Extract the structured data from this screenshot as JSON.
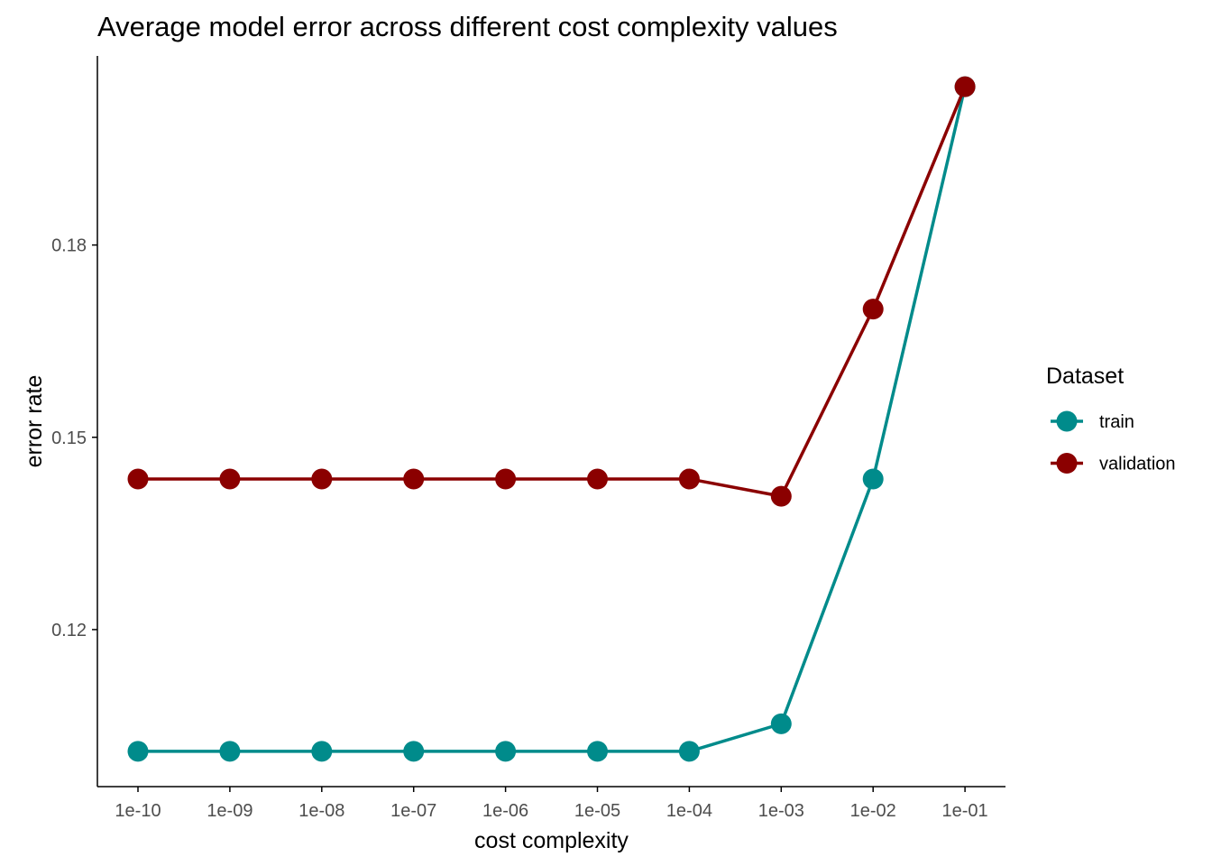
{
  "chart_data": {
    "type": "line",
    "title": "Average model error across different cost complexity values",
    "xlabel": "cost complexity",
    "ylabel": "error rate",
    "categories": [
      "1e-10",
      "1e-09",
      "1e-08",
      "1e-07",
      "1e-06",
      "1e-05",
      "1e-04",
      "1e-03",
      "1e-02",
      "1e-01"
    ],
    "ylim": [
      0.0955,
      0.2095
    ],
    "yticks": [
      0.12,
      0.15,
      0.18
    ],
    "ytick_labels": [
      "0.12",
      "0.15",
      "0.18"
    ],
    "grid": false,
    "legend": {
      "title": "Dataset",
      "position": "right"
    },
    "series": [
      {
        "name": "train",
        "color": "#008B8B",
        "values": [
          0.101,
          0.101,
          0.101,
          0.101,
          0.101,
          0.101,
          0.101,
          0.1053,
          0.1435,
          0.2047
        ]
      },
      {
        "name": "validation",
        "color": "#8B0000",
        "values": [
          0.1435,
          0.1435,
          0.1435,
          0.1435,
          0.1435,
          0.1435,
          0.1435,
          0.1408,
          0.17,
          0.2047
        ]
      }
    ]
  }
}
